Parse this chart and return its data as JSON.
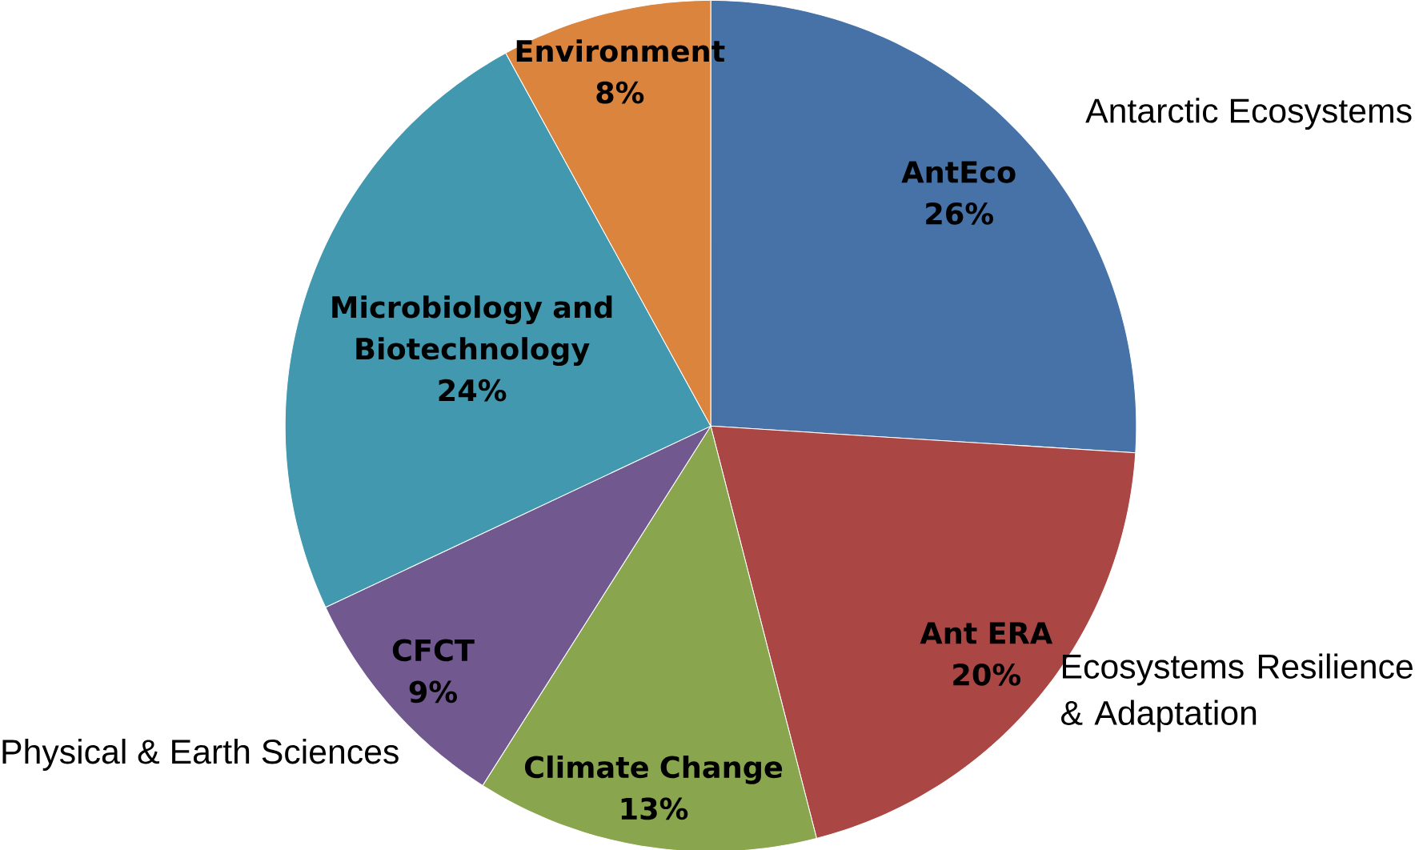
{
  "chart_data": {
    "type": "pie",
    "categories": [
      "AntEco",
      "Ant ERA",
      "Climate Change",
      "CFCT",
      "Microbiology and Biotechnology",
      "Environment"
    ],
    "values": [
      26,
      20,
      13,
      9,
      24,
      8
    ],
    "value_labels": [
      "26%",
      "20%",
      "13%",
      "9%",
      "24%",
      "8%"
    ],
    "colors": [
      "#4672a7",
      "#aa4644",
      "#89a54e",
      "#71588f",
      "#4298af",
      "#db843d"
    ],
    "annotations": [
      "Antarctic Ecosystems",
      "Ecosystems Resilience & Adaptation",
      "Physical & Earth Sciences"
    ]
  }
}
